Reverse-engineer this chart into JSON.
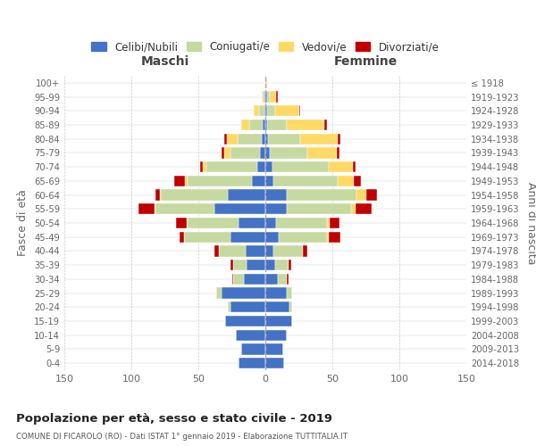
{
  "age_groups": [
    "0-4",
    "5-9",
    "10-14",
    "15-19",
    "20-24",
    "25-29",
    "30-34",
    "35-39",
    "40-44",
    "45-49",
    "50-54",
    "55-59",
    "60-64",
    "65-69",
    "70-74",
    "75-79",
    "80-84",
    "85-89",
    "90-94",
    "95-99",
    "100+"
  ],
  "birth_years": [
    "2014-2018",
    "2009-2013",
    "2004-2008",
    "1999-2003",
    "1994-1998",
    "1989-1993",
    "1984-1988",
    "1979-1983",
    "1974-1978",
    "1969-1973",
    "1964-1968",
    "1959-1963",
    "1954-1958",
    "1949-1953",
    "1944-1948",
    "1939-1943",
    "1934-1938",
    "1929-1933",
    "1924-1928",
    "1919-1923",
    "≤ 1918"
  ],
  "males_celibe": [
    20,
    18,
    22,
    30,
    26,
    33,
    16,
    14,
    15,
    26,
    20,
    38,
    28,
    10,
    6,
    4,
    3,
    2,
    1,
    1,
    0
  ],
  "males_coniugato": [
    0,
    0,
    0,
    0,
    2,
    4,
    8,
    10,
    20,
    35,
    38,
    44,
    50,
    48,
    38,
    22,
    18,
    10,
    4,
    1,
    0
  ],
  "males_vedovo": [
    0,
    0,
    0,
    0,
    0,
    0,
    0,
    0,
    0,
    0,
    1,
    1,
    1,
    2,
    3,
    5,
    8,
    6,
    4,
    1,
    0
  ],
  "males_divorziato": [
    0,
    0,
    0,
    0,
    0,
    0,
    1,
    2,
    3,
    3,
    8,
    12,
    3,
    8,
    2,
    2,
    2,
    0,
    0,
    0,
    0
  ],
  "females_nubile": [
    14,
    13,
    16,
    20,
    18,
    16,
    9,
    7,
    6,
    10,
    8,
    16,
    16,
    6,
    5,
    3,
    2,
    1,
    1,
    1,
    0
  ],
  "females_coniugata": [
    0,
    0,
    0,
    0,
    2,
    4,
    7,
    10,
    22,
    36,
    38,
    48,
    52,
    48,
    42,
    28,
    24,
    15,
    6,
    2,
    0
  ],
  "females_vedova": [
    0,
    0,
    0,
    0,
    0,
    0,
    0,
    0,
    0,
    1,
    2,
    3,
    7,
    12,
    18,
    22,
    28,
    28,
    18,
    5,
    1
  ],
  "females_divorziata": [
    0,
    0,
    0,
    0,
    0,
    0,
    1,
    2,
    3,
    9,
    7,
    12,
    8,
    5,
    2,
    2,
    2,
    2,
    1,
    1,
    0
  ],
  "colors_celibe": "#4472c4",
  "colors_coniugato": "#c5d9a0",
  "colors_vedovo": "#ffd966",
  "colors_divorziato": "#c00000",
  "xlim": 150,
  "title": "Popolazione per età, sesso e stato civile - 2019",
  "subtitle": "COMUNE DI FICAROLO (RO) - Dati ISTAT 1° gennaio 2019 - Elaborazione TUTTITALIA.IT",
  "ylabel_left": "Fasce di età",
  "ylabel_right": "Anni di nascita",
  "xlabel_left": "Maschi",
  "xlabel_right": "Femmine",
  "legend_labels": [
    "Celibi/Nubili",
    "Coniugati/e",
    "Vedovi/e",
    "Divorziati/e"
  ],
  "bg_color": "#ffffff",
  "grid_color": "#cccccc"
}
